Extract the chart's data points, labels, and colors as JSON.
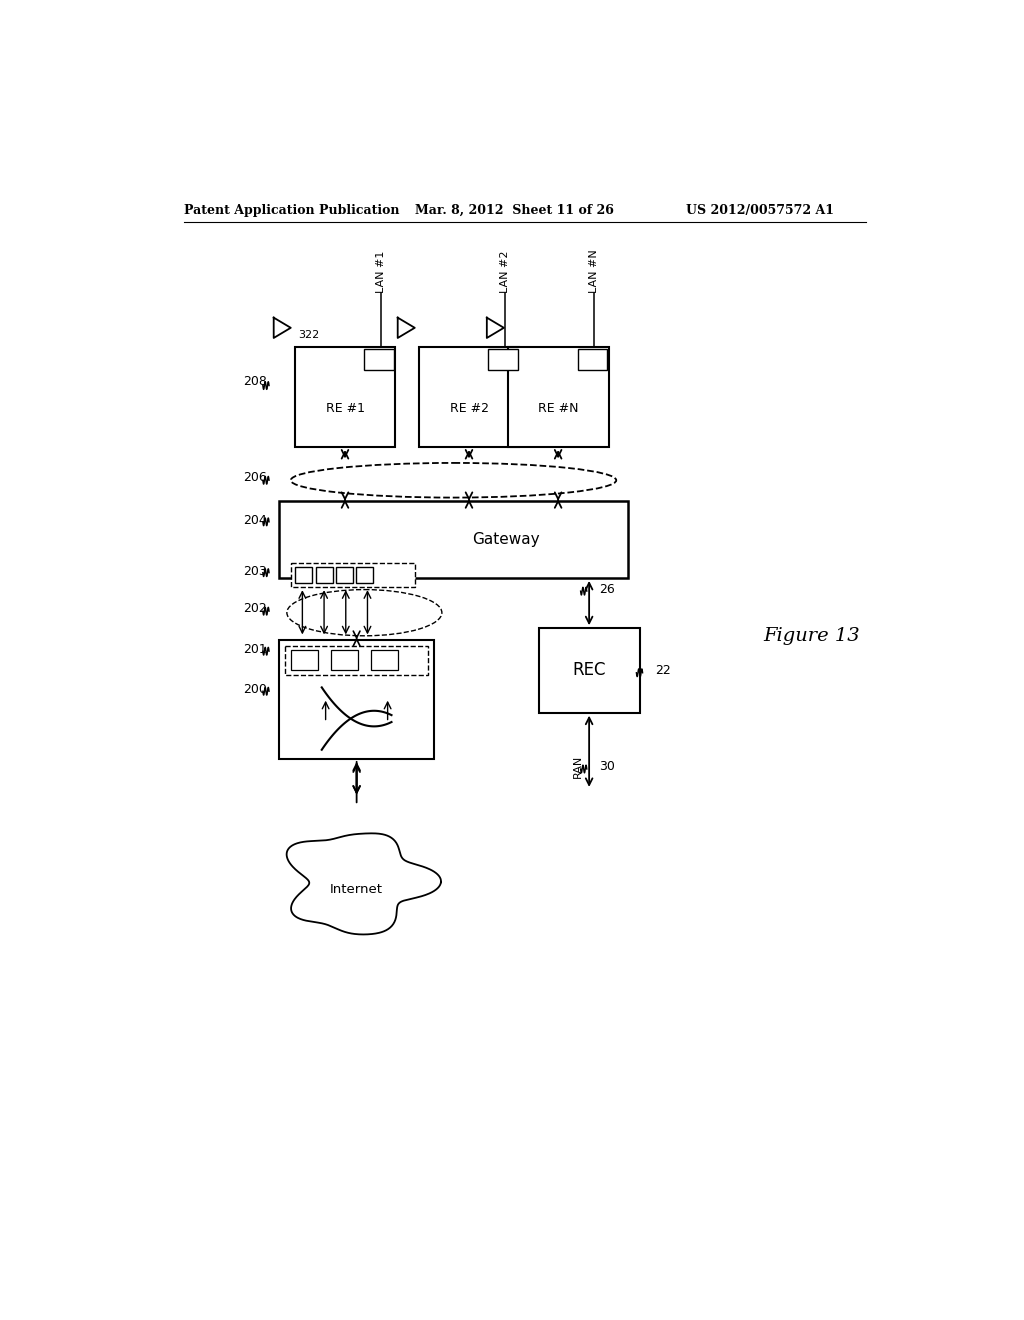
{
  "header_left": "Patent Application Publication",
  "header_mid": "Mar. 8, 2012  Sheet 11 of 26",
  "header_right": "US 2012/0057572 A1",
  "figure_label": "Figure 13",
  "background_color": "#ffffff",
  "line_color": "#000000"
}
